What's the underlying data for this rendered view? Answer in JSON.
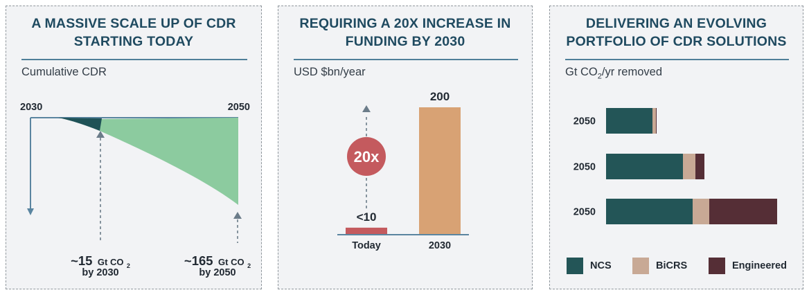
{
  "panel1": {
    "title_line1": "A MASSIVE SCALE UP OF CDR",
    "title_line2": "STARTING TODAY",
    "unit": "Cumulative CDR",
    "x_start": "2030",
    "x_end": "2050",
    "callout_a": {
      "value": "~15",
      "unit": "Gt CO",
      "sub": "2",
      "by": "by 2030"
    },
    "callout_b": {
      "value": "~165",
      "unit": "Gt CO",
      "sub": "2",
      "by": "by 2050"
    },
    "colors": {
      "fill_2030": "#1f5257",
      "fill_2050": "#8ccb9f",
      "axis": "#5a85a0",
      "arrow": "#6b7c89"
    }
  },
  "panel2": {
    "title_line1": "REQUIRING A 20X INCREASE IN",
    "title_line2": "FUNDING BY 2030",
    "unit": "USD $bn/year",
    "multiplier": "20x",
    "colors": {
      "bar_today": "#c45a5e",
      "bar_2030": "#d8a274",
      "badge": "#c45a5e",
      "arrow": "#6b7c89"
    }
  },
  "panel3": {
    "title_line1": "DELIVERING AN EVOLVING",
    "title_line2": "PORTFOLIO OF CDR SOLUTIONS",
    "unit_main": "Gt CO",
    "unit_sub": "2",
    "unit_rest": "/yr removed",
    "legend": [
      {
        "name": "NCS",
        "color": "#235557"
      },
      {
        "name": "BiCRS",
        "color": "#c8a995"
      },
      {
        "name": "Engineered",
        "color": "#552e36"
      }
    ]
  },
  "chart_data": [
    {
      "type": "area",
      "title": "A MASSIVE SCALE UP OF CDR STARTING TODAY",
      "ylabel": "Cumulative CDR",
      "x": [
        2030,
        2050
      ],
      "annotations": [
        {
          "label": "~15 Gt CO2 by 2030",
          "value": 15
        },
        {
          "label": "~165 Gt CO2 by 2050",
          "value": 165
        }
      ]
    },
    {
      "type": "bar",
      "title": "REQUIRING A 20X INCREASE IN FUNDING BY 2030",
      "ylabel": "USD $bn/year",
      "categories": [
        "Today",
        "2030"
      ],
      "values": [
        10,
        200
      ],
      "value_labels": [
        "<10",
        "200"
      ],
      "ylim": [
        0,
        200
      ]
    },
    {
      "type": "bar",
      "orientation": "horizontal",
      "stacked": true,
      "title": "DELIVERING AN EVOLVING PORTFOLIO OF CDR SOLUTIONS",
      "xlabel": "Gt CO2/yr removed",
      "categories": [
        "2050",
        "2050",
        "2050"
      ],
      "series": [
        {
          "name": "NCS",
          "values": [
            6.7,
            11.1,
            12.5
          ]
        },
        {
          "name": "BiCRS",
          "values": [
            0.5,
            1.8,
            2.4
          ]
        },
        {
          "name": "Engineered",
          "values": [
            0.1,
            1.3,
            9.8
          ]
        }
      ],
      "xlim": [
        0,
        25
      ]
    }
  ]
}
